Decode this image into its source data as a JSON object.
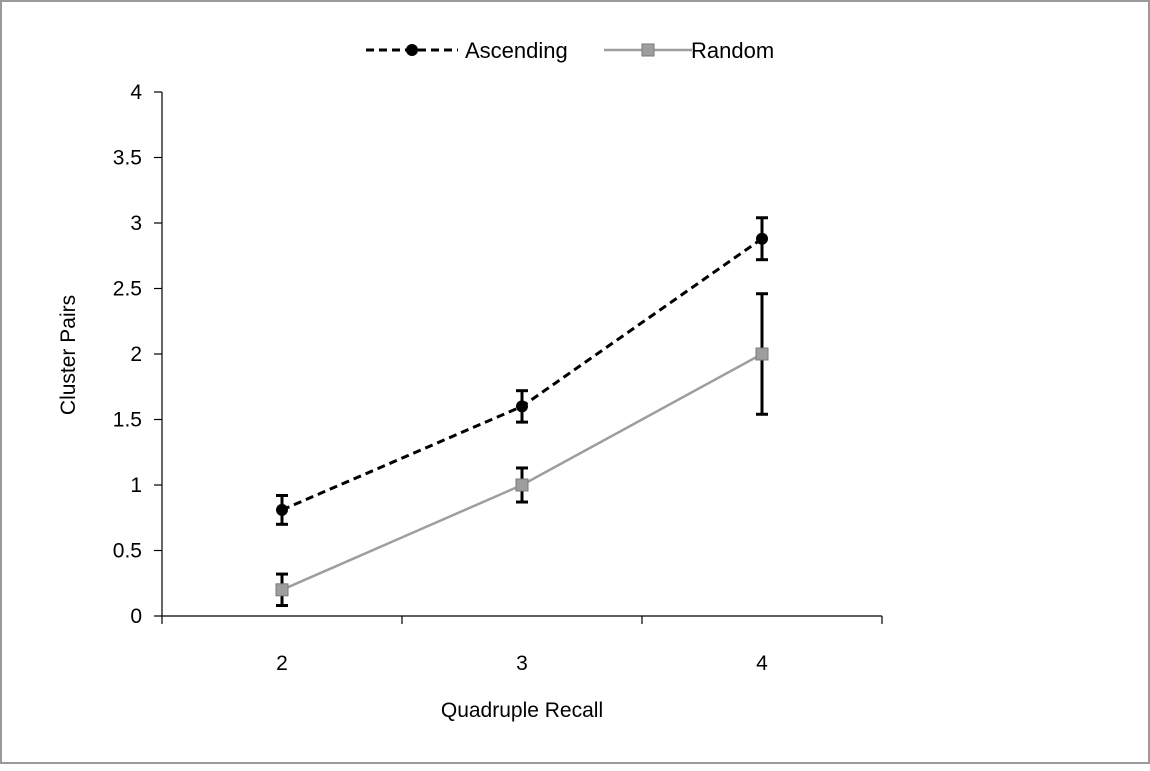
{
  "chart_data": {
    "type": "line",
    "categories": [
      "2",
      "3",
      "4"
    ],
    "x": [
      2,
      3,
      4
    ],
    "xlabel": "Quadruple Recall",
    "ylabel": "Cluster Pairs",
    "ylim": [
      0,
      4
    ],
    "y_ticks": [
      "0",
      "0.5",
      "1",
      "1.5",
      "2",
      "2.5",
      "3",
      "3.5",
      "4"
    ],
    "y_tick_values": [
      0,
      0.5,
      1,
      1.5,
      2,
      2.5,
      3,
      3.5,
      4
    ],
    "grid": false,
    "legend_position": "top",
    "series": [
      {
        "name": "Ascending",
        "values": [
          0.81,
          1.6,
          2.88
        ],
        "error": [
          0.11,
          0.12,
          0.16
        ],
        "color": "#000000",
        "line_style": "dashed",
        "marker": "circle"
      },
      {
        "name": "Random",
        "values": [
          0.2,
          1.0,
          2.0
        ],
        "error": [
          0.12,
          0.13,
          0.46
        ],
        "color": "#9e9e9e",
        "line_style": "solid",
        "marker": "square"
      }
    ]
  }
}
